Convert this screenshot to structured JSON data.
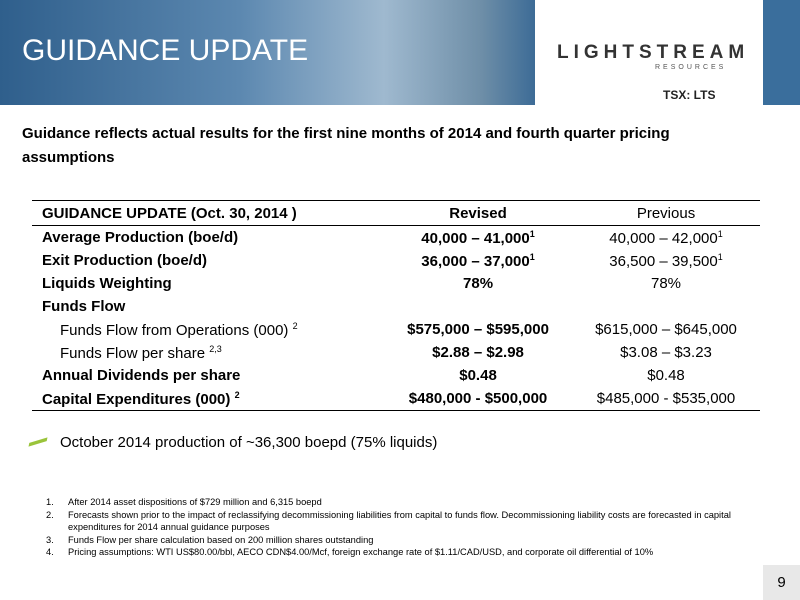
{
  "header": {
    "title": "GUIDANCE UPDATE",
    "logo": "LIGHTSTREAM",
    "logo_sub": "RESOURCES",
    "ticker": "TSX: LTS"
  },
  "subtitle": "Guidance reflects actual results for the first nine months of 2014 and fourth quarter pricing assumptions",
  "table": {
    "columns": [
      "GUIDANCE UPDATE (Oct. 30, 2014 )",
      "Revised",
      "Previous"
    ],
    "rows": [
      {
        "cells": [
          {
            "text": "Average Production (boe/d)"
          },
          {
            "text": "40,000 – 41,000",
            "sup": "1"
          },
          {
            "text": "40,000 – 42,000",
            "sup": "1"
          }
        ]
      },
      {
        "cells": [
          {
            "text": "Exit Production (boe/d)"
          },
          {
            "text": "36,000 – 37,000",
            "sup": "1"
          },
          {
            "text": "36,500 – 39,500",
            "sup": "1"
          }
        ]
      },
      {
        "cells": [
          {
            "text": "Liquids Weighting"
          },
          {
            "text": "78%"
          },
          {
            "text": "78%"
          }
        ]
      },
      {
        "cells": [
          {
            "text": "Funds Flow"
          }
        ]
      },
      {
        "indent": true,
        "cells": [
          {
            "text": "Funds Flow from Operations (000)",
            "sup": "2"
          },
          {
            "text": "$575,000 – $595,000"
          },
          {
            "text": "$615,000 – $645,000"
          }
        ]
      },
      {
        "indent": true,
        "cells": [
          {
            "text": "Funds Flow per share",
            "sup": "2,3"
          },
          {
            "text": "$2.88 – $2.98"
          },
          {
            "text": "$3.08 – $3.23"
          }
        ]
      },
      {
        "cells": [
          {
            "text": "Annual Dividends per share"
          },
          {
            "text": "$0.48"
          },
          {
            "text": "$0.48"
          }
        ]
      },
      {
        "cells": [
          {
            "text": "Capital Expenditures (000)",
            "sup": "2"
          },
          {
            "text": "$480,000 - $500,000"
          },
          {
            "text": "$485,000 - $535,000"
          }
        ]
      }
    ]
  },
  "bullet": "October 2014 production of ~36,300 boepd (75% liquids)",
  "footnotes": [
    {
      "number": "1.",
      "text": "After 2014 asset dispositions of $729 million and 6,315 boepd"
    },
    {
      "number": "2.",
      "text": "Forecasts shown prior to the impact of reclassifying decommissioning liabilities from capital to funds flow.  Decommissioning liability costs are forecasted in capital expenditures for 2014 annual guidance purposes"
    },
    {
      "number": "3.",
      "text": "Funds Flow per share calculation based on 200 million shares outstanding"
    },
    {
      "number": "4.",
      "text": "Pricing assumptions: WTI US$80.00/bbl, AECO CDN$4.00/Mcf, foreign exchange rate of $1.11/CAD/USD, and corporate oil differential of 10%"
    }
  ],
  "page_number": "9"
}
